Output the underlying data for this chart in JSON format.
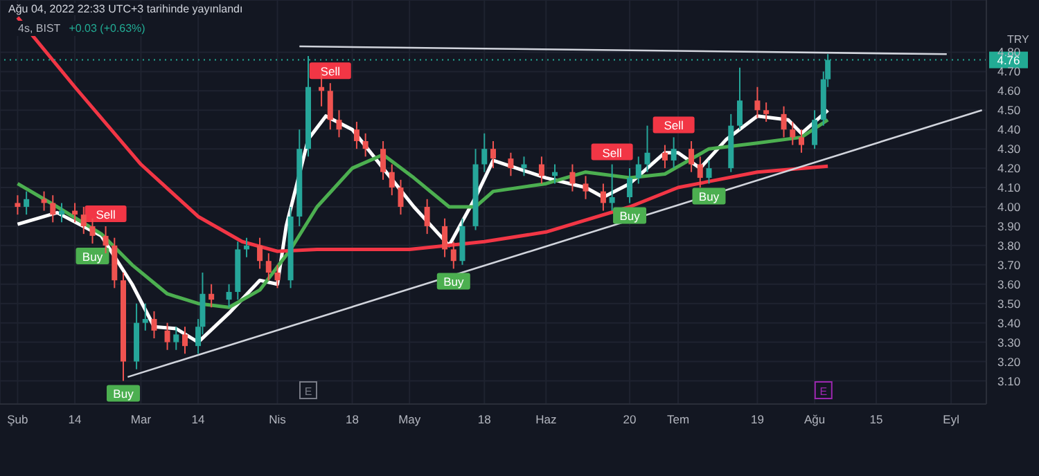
{
  "chart_data": {
    "type": "candlestick",
    "title": "Ağu 04, 2022 22:33 UTC+3 tarihinde yayınlandı",
    "subtitle": "4s, BIST",
    "ylabel": "TRY",
    "x": [
      "2022-02-01",
      "2022-02-03",
      "2022-02-07",
      "2022-02-09",
      "2022-02-11",
      "2022-02-14",
      "2022-02-16",
      "2022-02-18",
      "2022-02-21",
      "2022-02-23",
      "2022-02-25",
      "2022-02-28",
      "2022-03-02",
      "2022-03-04",
      "2022-03-07",
      "2022-03-09",
      "2022-03-11",
      "2022-03-14",
      "2022-03-15",
      "2022-03-17",
      "2022-03-21",
      "2022-03-23",
      "2022-03-25",
      "2022-03-28",
      "2022-03-30",
      "2022-04-01",
      "2022-04-04",
      "2022-04-06",
      "2022-04-08",
      "2022-04-11",
      "2022-04-13",
      "2022-04-15",
      "2022-04-19",
      "2022-04-21",
      "2022-04-25",
      "2022-04-27",
      "2022-04-29",
      "2022-05-05",
      "2022-05-09",
      "2022-05-11",
      "2022-05-13",
      "2022-05-16",
      "2022-05-18",
      "2022-05-20",
      "2022-05-24",
      "2022-05-27",
      "2022-05-31",
      "2022-06-03",
      "2022-06-07",
      "2022-06-10",
      "2022-06-14",
      "2022-06-16",
      "2022-06-20",
      "2022-06-22",
      "2022-06-24",
      "2022-06-28",
      "2022-06-30",
      "2022-07-04",
      "2022-07-06",
      "2022-07-08",
      "2022-07-13",
      "2022-07-15",
      "2022-07-19",
      "2022-07-21",
      "2022-07-25",
      "2022-07-27",
      "2022-07-29",
      "2022-08-01",
      "2022-08-03",
      "2022-08-04"
    ],
    "ohlc": [
      [
        4.02,
        4.06,
        3.96,
        4.0
      ],
      [
        4.0,
        4.08,
        3.96,
        4.04
      ],
      [
        4.04,
        4.08,
        3.98,
        4.02
      ],
      [
        4.02,
        4.06,
        3.92,
        3.96
      ],
      [
        3.96,
        4.02,
        3.92,
        3.98
      ],
      [
        3.98,
        4.02,
        3.92,
        3.96
      ],
      [
        3.96,
        4.0,
        3.86,
        3.9
      ],
      [
        3.9,
        3.94,
        3.81,
        3.85
      ],
      [
        3.85,
        3.9,
        3.76,
        3.8
      ],
      [
        3.8,
        3.84,
        3.58,
        3.62
      ],
      [
        3.62,
        3.66,
        3.1,
        3.2
      ],
      [
        3.2,
        3.5,
        3.16,
        3.4
      ],
      [
        3.4,
        3.5,
        3.36,
        3.42
      ],
      [
        3.42,
        3.46,
        3.32,
        3.36
      ],
      [
        3.36,
        3.4,
        3.26,
        3.3
      ],
      [
        3.3,
        3.38,
        3.26,
        3.34
      ],
      [
        3.34,
        3.38,
        3.24,
        3.28
      ],
      [
        3.28,
        3.42,
        3.24,
        3.38
      ],
      [
        3.38,
        3.66,
        3.34,
        3.55
      ],
      [
        3.55,
        3.6,
        3.48,
        3.52
      ],
      [
        3.52,
        3.6,
        3.48,
        3.56
      ],
      [
        3.56,
        3.82,
        3.52,
        3.78
      ],
      [
        3.78,
        3.84,
        3.74,
        3.8
      ],
      [
        3.8,
        3.84,
        3.68,
        3.72
      ],
      [
        3.72,
        3.76,
        3.62,
        3.66
      ],
      [
        3.66,
        3.7,
        3.58,
        3.62
      ],
      [
        3.62,
        4.0,
        3.58,
        3.95
      ],
      [
        3.95,
        4.4,
        3.9,
        4.3
      ],
      [
        4.3,
        4.78,
        4.26,
        4.62
      ],
      [
        4.62,
        4.7,
        4.52,
        4.6
      ],
      [
        4.6,
        4.64,
        4.4,
        4.45
      ],
      [
        4.45,
        4.5,
        4.36,
        4.4
      ],
      [
        4.4,
        4.44,
        4.3,
        4.34
      ],
      [
        4.34,
        4.38,
        4.26,
        4.3
      ],
      [
        4.3,
        4.34,
        4.14,
        4.18
      ],
      [
        4.18,
        4.22,
        4.06,
        4.1
      ],
      [
        4.1,
        4.14,
        3.96,
        4.0
      ],
      [
        4.0,
        4.04,
        3.86,
        3.9
      ],
      [
        3.9,
        3.94,
        3.74,
        3.78
      ],
      [
        3.78,
        3.82,
        3.68,
        3.72
      ],
      [
        3.72,
        3.94,
        3.7,
        3.9
      ],
      [
        3.9,
        4.3,
        3.88,
        4.22
      ],
      [
        4.22,
        4.38,
        4.18,
        4.3
      ],
      [
        4.3,
        4.34,
        4.2,
        4.25
      ],
      [
        4.25,
        4.28,
        4.16,
        4.2
      ],
      [
        4.2,
        4.26,
        4.16,
        4.22
      ],
      [
        4.22,
        4.26,
        4.12,
        4.16
      ],
      [
        4.16,
        4.22,
        4.12,
        4.18
      ],
      [
        4.18,
        4.22,
        4.08,
        4.12
      ],
      [
        4.12,
        4.16,
        4.04,
        4.08
      ],
      [
        4.08,
        4.12,
        3.98,
        4.02
      ],
      [
        4.02,
        4.22,
        3.98,
        4.05
      ],
      [
        4.05,
        4.2,
        4.02,
        4.15
      ],
      [
        4.15,
        4.26,
        4.12,
        4.22
      ],
      [
        4.22,
        4.42,
        4.18,
        4.28
      ],
      [
        4.28,
        4.32,
        4.2,
        4.24
      ],
      [
        4.24,
        4.36,
        4.2,
        4.3
      ],
      [
        4.3,
        4.34,
        4.18,
        4.22
      ],
      [
        4.22,
        4.26,
        4.1,
        4.15
      ],
      [
        4.15,
        4.24,
        4.12,
        4.2
      ],
      [
        4.2,
        4.48,
        4.18,
        4.42
      ],
      [
        4.42,
        4.72,
        4.4,
        4.55
      ],
      [
        4.55,
        4.62,
        4.46,
        4.5
      ],
      [
        4.5,
        4.54,
        4.44,
        4.48
      ],
      [
        4.48,
        4.52,
        4.36,
        4.4
      ],
      [
        4.4,
        4.44,
        4.32,
        4.36
      ],
      [
        4.36,
        4.4,
        4.28,
        4.32
      ],
      [
        4.32,
        4.5,
        4.3,
        4.45
      ],
      [
        4.45,
        4.7,
        4.42,
        4.66
      ],
      [
        4.66,
        4.79,
        4.62,
        4.76
      ]
    ],
    "colors": [
      "#ef5350",
      "#26a69a",
      "#ef5350",
      "#ef5350",
      "#26a69a",
      "#ef5350",
      "#ef5350",
      "#ef5350",
      "#ef5350",
      "#ef5350",
      "#ef5350",
      "#26a69a",
      "#26a69a",
      "#ef5350",
      "#ef5350",
      "#26a69a",
      "#ef5350",
      "#26a69a",
      "#26a69a",
      "#ef5350",
      "#26a69a",
      "#26a69a",
      "#26a69a",
      "#ef5350",
      "#ef5350",
      "#ef5350",
      "#26a69a",
      "#26a69a",
      "#26a69a",
      "#ef5350",
      "#ef5350",
      "#ef5350",
      "#ef5350",
      "#ef5350",
      "#ef5350",
      "#ef5350",
      "#ef5350",
      "#ef5350",
      "#ef5350",
      "#ef5350",
      "#26a69a",
      "#26a69a",
      "#26a69a",
      "#ef5350",
      "#ef5350",
      "#26a69a",
      "#ef5350",
      "#26a69a",
      "#ef5350",
      "#ef5350",
      "#ef5350",
      "#26a69a",
      "#26a69a",
      "#26a69a",
      "#26a69a",
      "#ef5350",
      "#26a69a",
      "#ef5350",
      "#ef5350",
      "#26a69a",
      "#26a69a",
      "#26a69a",
      "#ef5350",
      "#ef5350",
      "#ef5350",
      "#ef5350",
      "#ef5350",
      "#26a69a",
      "#26a69a",
      "#26a69a"
    ],
    "series": [
      {
        "type": "line",
        "color": "#ffffff",
        "x": [
          "2022-02-01",
          "2022-02-10",
          "2022-02-20",
          "2022-02-27",
          "2022-03-04",
          "2022-03-09",
          "2022-03-14",
          "2022-03-21",
          "2022-03-28",
          "2022-04-01",
          "2022-04-03",
          "2022-04-08",
          "2022-04-12",
          "2022-04-18",
          "2022-04-25",
          "2022-05-02",
          "2022-05-10",
          "2022-05-16",
          "2022-05-20",
          "2022-06-01",
          "2022-06-10",
          "2022-06-14",
          "2022-06-20",
          "2022-06-28",
          "2022-07-01",
          "2022-07-06",
          "2022-07-12",
          "2022-07-19",
          "2022-07-26",
          "2022-07-29",
          "2022-08-04"
        ],
        "values": [
          3.91,
          3.97,
          3.85,
          3.6,
          3.38,
          3.37,
          3.3,
          3.45,
          3.62,
          3.6,
          3.9,
          4.35,
          4.47,
          4.4,
          4.2,
          4.0,
          3.8,
          4.05,
          4.24,
          4.15,
          4.1,
          4.05,
          4.12,
          4.28,
          4.28,
          4.2,
          4.35,
          4.47,
          4.45,
          4.38,
          4.5
        ]
      },
      {
        "type": "line",
        "color": "#4caf50",
        "x": [
          "2022-02-01",
          "2022-02-10",
          "2022-02-20",
          "2022-02-27",
          "2022-03-07",
          "2022-03-14",
          "2022-03-21",
          "2022-03-28",
          "2022-04-04",
          "2022-04-10",
          "2022-04-18",
          "2022-04-25",
          "2022-05-02",
          "2022-05-10",
          "2022-05-16",
          "2022-05-20",
          "2022-06-01",
          "2022-06-10",
          "2022-06-20",
          "2022-06-28",
          "2022-07-08",
          "2022-07-19",
          "2022-07-29",
          "2022-08-04"
        ],
        "values": [
          4.12,
          4.0,
          3.86,
          3.7,
          3.55,
          3.5,
          3.48,
          3.57,
          3.78,
          4.0,
          4.2,
          4.27,
          4.15,
          4.0,
          4.0,
          4.08,
          4.12,
          4.18,
          4.15,
          4.17,
          4.3,
          4.33,
          4.36,
          4.45
        ]
      },
      {
        "type": "line",
        "color": "#f23645",
        "x": [
          "2022-02-01",
          "2022-02-14",
          "2022-03-01",
          "2022-03-14",
          "2022-03-24",
          "2022-04-01",
          "2022-04-10",
          "2022-05-01",
          "2022-05-18",
          "2022-06-01",
          "2022-06-20",
          "2022-07-01",
          "2022-07-19",
          "2022-08-04"
        ],
        "values": [
          4.98,
          4.62,
          4.22,
          3.95,
          3.82,
          3.77,
          3.78,
          3.78,
          3.82,
          3.87,
          4.0,
          4.1,
          4.18,
          4.21
        ]
      },
      {
        "type": "line",
        "color": "#d1d4dc",
        "x": [
          "2022-04-06",
          "2022-08-31"
        ],
        "values": [
          4.83,
          4.79
        ]
      },
      {
        "type": "line",
        "color": "#d1d4dc",
        "x": [
          "2022-02-26",
          "2022-09-08"
        ],
        "values": [
          3.12,
          4.5
        ]
      }
    ],
    "xlim": [
      "2022-01-28",
      "2022-09-09"
    ],
    "ylim": [
      2.98,
      5.07
    ],
    "xticks": [
      {
        "value": "2022-02-01",
        "label": "Şub"
      },
      {
        "value": "2022-02-14",
        "label": "14"
      },
      {
        "value": "2022-03-01",
        "label": "Mar"
      },
      {
        "value": "2022-03-14",
        "label": "14"
      },
      {
        "value": "2022-04-01",
        "label": "Nis"
      },
      {
        "value": "2022-04-18",
        "label": "18"
      },
      {
        "value": "2022-05-01",
        "label": "May"
      },
      {
        "value": "2022-05-18",
        "label": "18"
      },
      {
        "value": "2022-06-01",
        "label": "Haz"
      },
      {
        "value": "2022-06-20",
        "label": "20"
      },
      {
        "value": "2022-07-01",
        "label": "Tem"
      },
      {
        "value": "2022-07-19",
        "label": "19"
      },
      {
        "value": "2022-08-01",
        "label": "Ağu"
      },
      {
        "value": "2022-08-15",
        "label": "15"
      },
      {
        "value": "2022-09-01",
        "label": "Eyl"
      }
    ],
    "yticks": [
      {
        "value": 3.1,
        "label": "3.10"
      },
      {
        "value": 3.2,
        "label": "3.20"
      },
      {
        "value": 3.3,
        "label": "3.30"
      },
      {
        "value": 3.4,
        "label": "3.40"
      },
      {
        "value": 3.5,
        "label": "3.50"
      },
      {
        "value": 3.6,
        "label": "3.60"
      },
      {
        "value": 3.7,
        "label": "3.70"
      },
      {
        "value": 3.8,
        "label": "3.80"
      },
      {
        "value": 3.9,
        "label": "3.90"
      },
      {
        "value": 4.0,
        "label": "4.00"
      },
      {
        "value": 4.1,
        "label": "4.10"
      },
      {
        "value": 4.2,
        "label": "4.20"
      },
      {
        "value": 4.3,
        "label": "4.30"
      },
      {
        "value": 4.4,
        "label": "4.40"
      },
      {
        "value": 4.5,
        "label": "4.50"
      },
      {
        "value": 4.6,
        "label": "4.60"
      },
      {
        "value": 4.7,
        "label": "4.70"
      },
      {
        "value": 4.8,
        "label": "4.80"
      }
    ],
    "grid": true,
    "marker": "none",
    "ref_lines": [
      {
        "axis": "y",
        "value": 4.76,
        "label": "4.76",
        "color": "#22ab94",
        "line_style": "dotted"
      }
    ],
    "annotations": [
      "+0.03 (+0.63%)",
      {
        "text": "Sell",
        "x": "2022-02-21",
        "y": 3.9
      },
      {
        "text": "Buy",
        "x": "2022-02-18",
        "y": 3.81
      },
      {
        "text": "Buy",
        "x": "2022-02-25",
        "y": 3.1
      },
      {
        "text": "Sell",
        "x": "2022-04-13",
        "y": 4.64
      },
      {
        "text": "Buy",
        "x": "2022-05-11",
        "y": 3.68
      },
      {
        "text": "Sell",
        "x": "2022-06-16",
        "y": 4.22
      },
      {
        "text": "Buy",
        "x": "2022-06-20",
        "y": 4.02
      },
      {
        "text": "Sell",
        "x": "2022-06-30",
        "y": 4.36
      },
      {
        "text": "Buy",
        "x": "2022-07-08",
        "y": 4.12
      },
      {
        "text": "E",
        "x": "2022-04-08"
      },
      {
        "text": "E",
        "x": "2022-08-03"
      }
    ]
  }
}
